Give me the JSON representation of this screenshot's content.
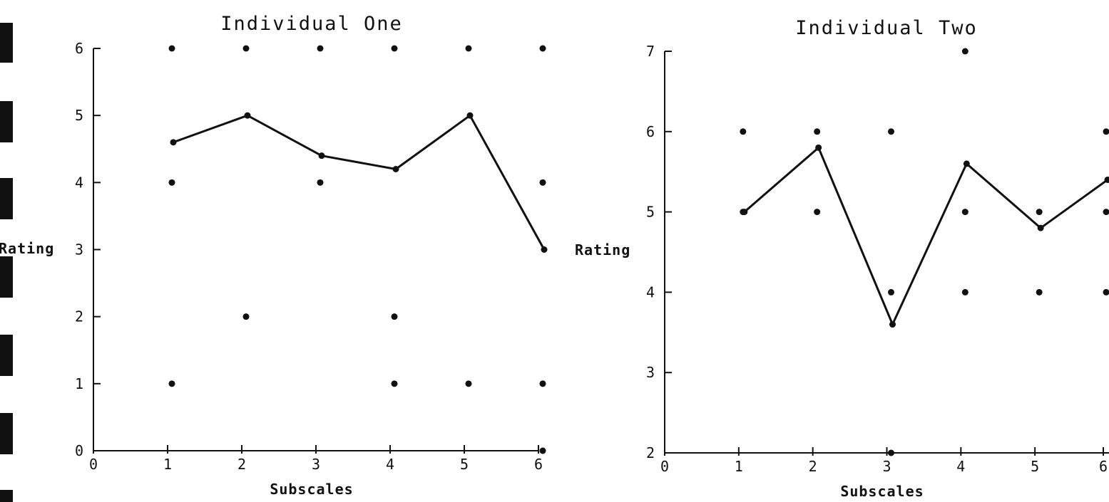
{
  "chart_data": [
    {
      "type": "line",
      "title": "Individual One",
      "xlabel": "Subscales",
      "ylabel": "Rating",
      "xlim": [
        0,
        6
      ],
      "ylim": [
        0,
        6
      ],
      "x_ticks": [
        "0",
        "1",
        "2",
        "3",
        "4",
        "5",
        "6"
      ],
      "y_ticks": [
        "0",
        "1",
        "2",
        "3",
        "4",
        "5",
        "6"
      ],
      "grid": false,
      "legend": "none",
      "series": [
        {
          "x": [
            1,
            2,
            3,
            4,
            5,
            6
          ],
          "y": [
            4.6,
            5.0,
            4.4,
            4.2,
            5.0,
            3.0
          ]
        }
      ],
      "responses": [
        {
          "x": 1,
          "y": [
            6,
            4,
            1
          ]
        },
        {
          "x": 2,
          "y": [
            6,
            2
          ]
        },
        {
          "x": 3,
          "y": [
            6,
            4
          ]
        },
        {
          "x": 4,
          "y": [
            6,
            2,
            1
          ]
        },
        {
          "x": 5,
          "y": [
            6,
            1
          ]
        },
        {
          "x": 6,
          "y": [
            6,
            4,
            1,
            0
          ]
        }
      ]
    },
    {
      "type": "line",
      "title": "Individual Two",
      "xlabel": "Subscales",
      "ylabel": "Rating",
      "xlim": [
        0,
        6
      ],
      "ylim": [
        2,
        7
      ],
      "x_ticks": [
        "0",
        "1",
        "2",
        "3",
        "4",
        "5",
        "6"
      ],
      "y_ticks": [
        "2",
        "3",
        "4",
        "5",
        "6",
        "7"
      ],
      "grid": false,
      "legend": "none",
      "series": [
        {
          "x": [
            1,
            2,
            3,
            4,
            5,
            6
          ],
          "y": [
            5.0,
            5.8,
            3.6,
            5.6,
            4.8,
            5.4
          ]
        }
      ],
      "responses": [
        {
          "x": 1,
          "y": [
            6,
            5
          ]
        },
        {
          "x": 2,
          "y": [
            6,
            5
          ]
        },
        {
          "x": 3,
          "y": [
            6,
            4,
            2
          ]
        },
        {
          "x": 4,
          "y": [
            7,
            5,
            4
          ]
        },
        {
          "x": 5,
          "y": [
            5,
            4
          ]
        },
        {
          "x": 6,
          "y": [
            6,
            5,
            4
          ]
        }
      ]
    }
  ],
  "style": {
    "ink": "#111111",
    "background": "#ffffff"
  }
}
